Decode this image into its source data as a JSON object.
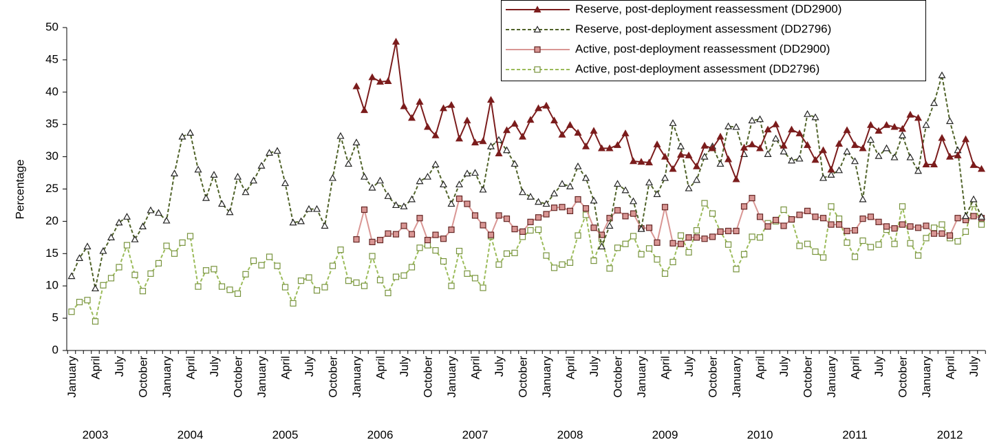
{
  "chart_data": {
    "type": "line",
    "y_label": "Percentage",
    "categories": [
      "January",
      null,
      null,
      "April",
      null,
      null,
      "July",
      null,
      null,
      "October",
      null,
      null,
      "January",
      null,
      null,
      "April",
      null,
      null,
      "July",
      null,
      null,
      "October",
      null,
      null,
      "January",
      null,
      null,
      "April",
      null,
      null,
      "July",
      null,
      null,
      "October",
      null,
      null,
      "January",
      null,
      null,
      "April",
      null,
      null,
      "July",
      null,
      null,
      "October",
      null,
      null,
      "January",
      null,
      null,
      "April",
      null,
      null,
      "July",
      null,
      null,
      "October",
      null,
      null,
      "January",
      null,
      null,
      "April",
      null,
      null,
      "July",
      null,
      null,
      "October",
      null,
      null,
      "January",
      null,
      null,
      "April",
      null,
      null,
      "July",
      null,
      null,
      "October",
      null,
      null,
      "January",
      null,
      null,
      "April",
      null,
      null,
      "July",
      null,
      null,
      "October",
      null,
      null,
      "January",
      null,
      null,
      "April",
      null,
      null,
      "July",
      null,
      null,
      "October",
      null,
      null,
      "January",
      null,
      null,
      "April",
      null,
      null,
      "July",
      null
    ],
    "years": [
      "2003",
      "2004",
      "2005",
      "2006",
      "2007",
      "2008",
      "2009",
      "2010",
      "2011",
      "2012"
    ],
    "ylim": [
      0,
      50
    ],
    "yticks": [
      0,
      5,
      10,
      15,
      20,
      25,
      30,
      35,
      40,
      45,
      50
    ],
    "series": [
      {
        "name": "Reserve, post-deployment reassessment (DD2900)",
        "color": "#7b1c1c",
        "line_style": "solid",
        "marker": "triangle",
        "marker_fill": "#7b1c1c",
        "marker_edge": "#7b1c1c",
        "values": [
          null,
          null,
          null,
          null,
          null,
          null,
          null,
          null,
          null,
          null,
          null,
          null,
          null,
          null,
          null,
          null,
          null,
          null,
          null,
          null,
          null,
          null,
          null,
          null,
          null,
          null,
          null,
          null,
          null,
          null,
          null,
          null,
          null,
          null,
          null,
          null,
          40.9,
          37.2,
          42.3,
          41.6,
          41.7,
          47.8,
          37.8,
          36.0,
          38.5,
          34.6,
          33.3,
          37.5,
          38.0,
          32.8,
          35.6,
          32.2,
          32.4,
          38.8,
          30.5,
          34.1,
          35.1,
          33.1,
          35.7,
          37.5,
          37.9,
          35.6,
          33.4,
          34.9,
          33.7,
          31.6,
          34.0,
          31.3,
          31.3,
          31.8,
          33.6,
          29.3,
          29.2,
          29.1,
          31.9,
          30.0,
          28.1,
          30.3,
          30.2,
          28.5,
          31.7,
          31.3,
          33.1,
          29.6,
          26.5,
          31.4,
          31.9,
          31.3,
          34.2,
          35.0,
          31.7,
          34.2,
          33.6,
          31.8,
          29.5,
          31.0,
          28.0,
          32.0,
          34.1,
          31.8,
          31.3,
          34.9,
          34.0,
          34.9,
          34.6,
          34.3,
          36.5,
          36.0,
          28.8,
          28.8,
          32.9,
          30.0,
          30.2,
          32.7,
          28.7,
          28.1
        ]
      },
      {
        "name": "Reserve, post-deployment assessment (DD2796)",
        "color": "#4f6228",
        "line_style": "dashed",
        "marker": "triangle",
        "marker_fill": "#ffffff",
        "marker_edge": "#222222",
        "values": [
          11.5,
          14.3,
          16.1,
          9.6,
          15.4,
          17.5,
          19.8,
          20.7,
          17.2,
          19.2,
          21.7,
          21.3,
          20.1,
          27.4,
          33.1,
          33.7,
          28.0,
          23.6,
          27.2,
          22.7,
          21.4,
          26.9,
          24.5,
          26.3,
          28.6,
          30.6,
          30.9,
          25.9,
          19.8,
          20.0,
          21.9,
          21.9,
          19.3,
          26.7,
          33.2,
          28.9,
          32.2,
          26.9,
          25.2,
          26.3,
          23.9,
          22.5,
          22.3,
          23.4,
          26.2,
          26.9,
          28.8,
          25.7,
          22.7,
          25.7,
          27.4,
          27.5,
          24.9,
          31.6,
          32.6,
          31.0,
          28.9,
          24.5,
          23.8,
          23.0,
          22.7,
          24.3,
          25.8,
          25.4,
          28.5,
          26.7,
          23.2,
          16.1,
          19.3,
          25.8,
          24.8,
          23.1,
          18.8,
          26.0,
          24.2,
          26.7,
          35.2,
          31.6,
          25.1,
          26.4,
          30.0,
          31.6,
          28.9,
          34.7,
          34.6,
          30.4,
          35.6,
          35.8,
          30.4,
          32.8,
          30.8,
          29.4,
          29.7,
          36.6,
          36.1,
          26.7,
          27.2,
          27.9,
          30.8,
          29.3,
          23.4,
          32.6,
          30.1,
          31.3,
          29.9,
          33.3,
          29.9,
          27.8,
          34.9,
          38.3,
          42.6,
          35.5,
          31.0,
          20.8,
          23.4,
          20.7
        ]
      },
      {
        "name": "Active, post-deployment reassessment (DD2900)",
        "color": "#d99694",
        "line_style": "solid",
        "marker": "square",
        "marker_fill": "#d99694",
        "marker_edge": "#632523",
        "values": [
          null,
          null,
          null,
          null,
          null,
          null,
          null,
          null,
          null,
          null,
          null,
          null,
          null,
          null,
          null,
          null,
          null,
          null,
          null,
          null,
          null,
          null,
          null,
          null,
          null,
          null,
          null,
          null,
          null,
          null,
          null,
          null,
          null,
          null,
          null,
          null,
          17.2,
          21.8,
          16.8,
          17.1,
          18.1,
          18.0,
          19.3,
          18.0,
          20.5,
          17.1,
          17.9,
          17.3,
          18.7,
          23.5,
          22.7,
          20.9,
          19.4,
          17.9,
          20.9,
          20.4,
          18.8,
          18.4,
          19.9,
          20.6,
          21.1,
          22.1,
          22.2,
          21.6,
          23.4,
          22.0,
          19.0,
          17.9,
          20.5,
          21.7,
          20.8,
          21.2,
          18.9,
          19.0,
          16.7,
          22.2,
          16.6,
          16.5,
          17.5,
          17.5,
          17.3,
          17.6,
          18.4,
          18.5,
          18.5,
          22.3,
          23.6,
          20.7,
          19.2,
          20.2,
          19.3,
          20.3,
          21.0,
          21.6,
          20.7,
          20.5,
          19.5,
          19.5,
          18.5,
          18.6,
          20.4,
          20.7,
          19.9,
          19.2,
          18.9,
          19.5,
          19.2,
          19.0,
          19.3,
          18.1,
          18.1,
          17.8,
          20.5,
          20.2,
          20.8,
          20.5
        ]
      },
      {
        "name": "Active, post-deployment assessment (DD2796)",
        "color": "#9bbb59",
        "line_style": "dashed",
        "marker": "square",
        "marker_fill": "#ffffff",
        "marker_edge": "#77933c",
        "values": [
          6.0,
          7.5,
          7.8,
          4.5,
          10.1,
          11.2,
          12.9,
          16.3,
          11.7,
          9.2,
          11.9,
          13.5,
          16.2,
          15.0,
          16.7,
          17.7,
          9.9,
          12.4,
          12.6,
          9.9,
          9.4,
          8.8,
          11.8,
          13.9,
          13.2,
          14.5,
          13.1,
          9.8,
          7.3,
          10.8,
          11.3,
          9.3,
          9.8,
          13.1,
          15.6,
          10.8,
          10.5,
          10.0,
          14.6,
          10.9,
          8.9,
          11.4,
          11.6,
          12.9,
          15.9,
          16.3,
          15.5,
          13.8,
          10.0,
          15.4,
          11.9,
          11.2,
          9.7,
          17.7,
          13.3,
          15.0,
          15.1,
          17.6,
          18.6,
          18.7,
          14.7,
          12.8,
          13.3,
          13.6,
          17.8,
          21.0,
          13.9,
          17.3,
          12.7,
          15.9,
          16.5,
          17.7,
          14.9,
          15.8,
          14.1,
          11.9,
          13.7,
          17.8,
          15.2,
          18.6,
          22.8,
          21.2,
          18.4,
          16.4,
          12.6,
          14.9,
          17.6,
          17.5,
          19.7,
          20.0,
          21.8,
          20.3,
          16.2,
          16.5,
          15.3,
          14.4,
          22.3,
          20.4,
          16.7,
          14.5,
          17.0,
          16.0,
          16.4,
          18.7,
          16.5,
          22.3,
          16.6,
          14.7,
          17.4,
          19.0,
          19.5,
          17.4,
          16.9,
          18.4,
          22.7,
          19.5
        ]
      }
    ]
  }
}
